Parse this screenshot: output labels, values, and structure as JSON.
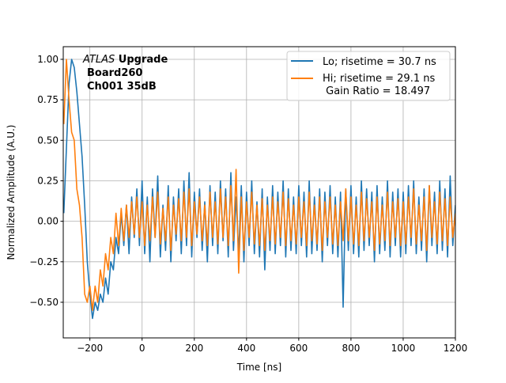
{
  "chart_data": {
    "type": "line",
    "title": "",
    "xlabel": "Time [ns]",
    "ylabel": "Normalized Amplitude (A.U.)",
    "xlim": [
      -302,
      1200
    ],
    "ylim": [
      -0.72,
      1.078
    ],
    "grid": true,
    "xticks": [
      -200,
      0,
      200,
      400,
      600,
      800,
      1000,
      1200
    ],
    "xtick_labels": [
      "−200",
      "0",
      "200",
      "400",
      "600",
      "800",
      "1000",
      "1200"
    ],
    "yticks": [
      -0.5,
      -0.25,
      0,
      0.25,
      0.5,
      0.75,
      1.0
    ],
    "ytick_labels": [
      "−0.50",
      "−0.25",
      "0.00",
      "0.25",
      "0.50",
      "0.75",
      "1.00"
    ],
    "annotation": {
      "italic": "ATLAS",
      "bold": " Upgrade",
      "line2": "Board260",
      "line3": "Ch001 35dB"
    },
    "legend_position": "top-right",
    "legend_extra": " Gain Ratio = 18.497",
    "x_start": -300,
    "x_step": 10,
    "series": [
      {
        "name": "Lo; risetime = 30.7 ns",
        "color": "#1f77b4",
        "values": [
          0.05,
          0.45,
          0.85,
          1.0,
          0.95,
          0.8,
          0.6,
          0.4,
          0.1,
          -0.25,
          -0.45,
          -0.6,
          -0.5,
          -0.55,
          -0.45,
          -0.5,
          -0.35,
          -0.45,
          -0.25,
          -0.3,
          -0.1,
          -0.2,
          0.05,
          -0.15,
          0.1,
          -0.2,
          0.15,
          -0.1,
          0.2,
          -0.15,
          0.25,
          -0.2,
          0.15,
          -0.25,
          0.2,
          -0.1,
          0.28,
          -0.22,
          0.1,
          -0.18,
          0.22,
          -0.25,
          0.15,
          -0.12,
          0.2,
          -0.2,
          0.25,
          -0.15,
          0.3,
          -0.22,
          0.18,
          -0.1,
          0.2,
          -0.18,
          0.12,
          -0.25,
          0.22,
          -0.15,
          0.18,
          -0.2,
          0.25,
          -0.12,
          0.2,
          -0.22,
          0.3,
          -0.18,
          0.15,
          -0.2,
          0.22,
          -0.25,
          0.18,
          -0.15,
          0.25,
          -0.2,
          0.12,
          -0.22,
          0.2,
          -0.3,
          0.15,
          -0.18,
          0.22,
          -0.2,
          0.18,
          -0.15,
          0.25,
          -0.22,
          0.2,
          -0.18,
          0.15,
          -0.2,
          0.22,
          -0.15,
          0.18,
          -0.22,
          0.25,
          -0.2,
          0.15,
          -0.18,
          0.2,
          -0.25,
          0.18,
          -0.15,
          0.22,
          -0.2,
          0.15,
          -0.22,
          0.18,
          -0.53,
          0.2,
          -0.18,
          0.22,
          -0.2,
          0.15,
          -0.22,
          0.25,
          -0.18,
          0.2,
          -0.15,
          0.18,
          -0.25,
          0.22,
          -0.2,
          0.15,
          -0.18,
          0.25,
          -0.22,
          0.18,
          -0.15,
          0.2,
          -0.22,
          0.18,
          -0.2,
          0.22,
          -0.15,
          0.25,
          -0.2,
          0.15,
          -0.18,
          0.2,
          -0.25,
          0.22,
          -0.15,
          0.18,
          -0.2,
          0.25,
          -0.18,
          0.2,
          -0.22,
          0.28,
          -0.15,
          0.1
        ]
      },
      {
        "name": "Hi; risetime = 29.1 ns",
        "color": "#ff7f0e",
        "values": [
          0.6,
          1.0,
          0.75,
          0.55,
          0.5,
          0.2,
          0.1,
          -0.1,
          -0.45,
          -0.5,
          -0.4,
          -0.55,
          -0.4,
          -0.5,
          -0.3,
          -0.4,
          -0.2,
          -0.3,
          -0.1,
          -0.2,
          0.05,
          -0.15,
          0.08,
          -0.12,
          0.1,
          -0.1,
          0.12,
          -0.08,
          0.15,
          -0.1,
          0.12,
          -0.15,
          0.1,
          -0.12,
          0.15,
          -0.1,
          0.18,
          -0.14,
          0.08,
          -0.12,
          0.15,
          -0.18,
          0.1,
          -0.08,
          0.14,
          -0.12,
          0.18,
          -0.1,
          0.2,
          -0.15,
          0.12,
          -0.08,
          0.15,
          -0.12,
          0.1,
          -0.15,
          0.18,
          -0.1,
          0.12,
          -0.14,
          0.2,
          -0.1,
          0.15,
          -0.15,
          0.22,
          -0.12,
          0.32,
          -0.32,
          0.15,
          -0.18,
          0.12,
          -0.1,
          0.18,
          -0.14,
          0.1,
          -0.15,
          0.14,
          -0.18,
          0.1,
          -0.12,
          0.15,
          -0.14,
          0.12,
          -0.1,
          0.18,
          -0.15,
          0.14,
          -0.12,
          0.1,
          -0.14,
          0.15,
          -0.1,
          0.12,
          -0.15,
          0.18,
          -0.12,
          0.1,
          -0.14,
          0.15,
          -0.18,
          0.12,
          -0.1,
          0.15,
          -0.14,
          0.1,
          -0.15,
          0.12,
          -0.12,
          0.2,
          -0.12,
          0.15,
          -0.14,
          0.1,
          -0.15,
          0.18,
          -0.12,
          0.14,
          -0.1,
          0.12,
          -0.18,
          0.15,
          -0.14,
          0.1,
          -0.12,
          0.18,
          -0.15,
          0.12,
          -0.1,
          0.14,
          -0.15,
          0.12,
          -0.14,
          0.15,
          -0.1,
          0.2,
          -0.14,
          0.1,
          -0.12,
          0.15,
          -0.18,
          0.22,
          -0.1,
          0.12,
          -0.14,
          0.18,
          -0.12,
          0.14,
          -0.15,
          0.15,
          -0.1,
          0.05
        ]
      }
    ]
  }
}
